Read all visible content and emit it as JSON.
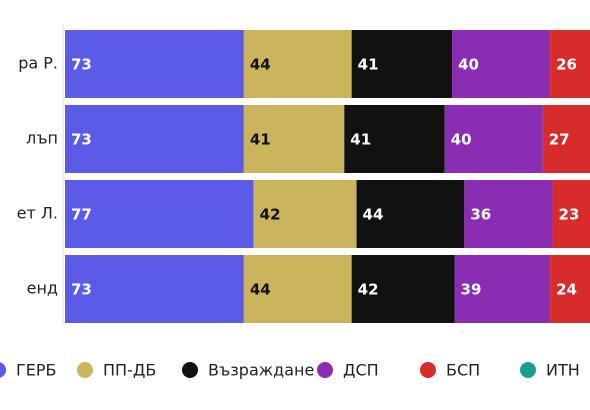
{
  "chart_data": {
    "type": "stacked-bar-horizontal",
    "categories": [
      "ра Р.",
      "лъп",
      "ет Л.",
      "енд"
    ],
    "series": [
      {
        "name": "ГЕРБ",
        "color": "#5b5be8",
        "values": [
          73,
          73,
          77,
          73
        ]
      },
      {
        "name": "ПП-ДБ",
        "color": "#cbb55c",
        "values": [
          44,
          41,
          42,
          44
        ]
      },
      {
        "name": "Възраждане",
        "color": "#111111",
        "values": [
          41,
          41,
          44,
          42
        ]
      },
      {
        "name": "ДСП",
        "color": "#8b2db3",
        "values": [
          40,
          40,
          36,
          39
        ]
      },
      {
        "name": "БСП",
        "color": "#d82b2b",
        "values": [
          26,
          27,
          23,
          24
        ]
      },
      {
        "name": "ИТН",
        "color": "#1a9e8c",
        "values": [
          null,
          null,
          null,
          null
        ]
      }
    ],
    "legend": "bottom"
  }
}
